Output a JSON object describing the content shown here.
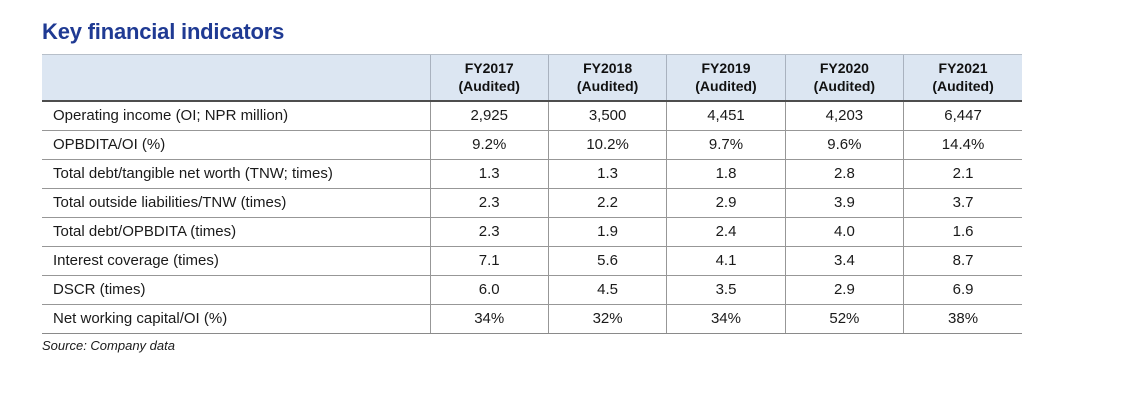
{
  "title": "Key financial indicators",
  "source_note": "Source: Company data",
  "colors": {
    "title_accent": "#1f3a93",
    "header_background": "#dce6f2",
    "row_border": "#979797",
    "header_bottom_border": "#4d4d4d"
  },
  "table": {
    "columns": [
      {
        "year": "FY2017",
        "note": "(Audited)"
      },
      {
        "year": "FY2018",
        "note": "(Audited)"
      },
      {
        "year": "FY2019",
        "note": "(Audited)"
      },
      {
        "year": "FY2020",
        "note": "(Audited)"
      },
      {
        "year": "FY2021",
        "note": "(Audited)"
      }
    ],
    "rows": [
      {
        "label": "Operating income (OI; NPR million)",
        "values": [
          "2,925",
          "3,500",
          "4,451",
          "4,203",
          "6,447"
        ]
      },
      {
        "label": "OPBDITA/OI (%)",
        "values": [
          "9.2%",
          "10.2%",
          "9.7%",
          "9.6%",
          "14.4%"
        ]
      },
      {
        "label": "Total debt/tangible net worth (TNW; times)",
        "values": [
          "1.3",
          "1.3",
          "1.8",
          "2.8",
          "2.1"
        ]
      },
      {
        "label": "Total outside liabilities/TNW (times)",
        "values": [
          "2.3",
          "2.2",
          "2.9",
          "3.9",
          "3.7"
        ]
      },
      {
        "label": "Total debt/OPBDITA (times)",
        "values": [
          "2.3",
          "1.9",
          "2.4",
          "4.0",
          "1.6"
        ]
      },
      {
        "label": "Interest coverage (times)",
        "values": [
          "7.1",
          "5.6",
          "4.1",
          "3.4",
          "8.7"
        ]
      },
      {
        "label": "DSCR (times)",
        "values": [
          "6.0",
          "4.5",
          "3.5",
          "2.9",
          "6.9"
        ]
      },
      {
        "label": "Net working capital/OI (%)",
        "values": [
          "34%",
          "32%",
          "34%",
          "52%",
          "38%"
        ]
      }
    ]
  }
}
